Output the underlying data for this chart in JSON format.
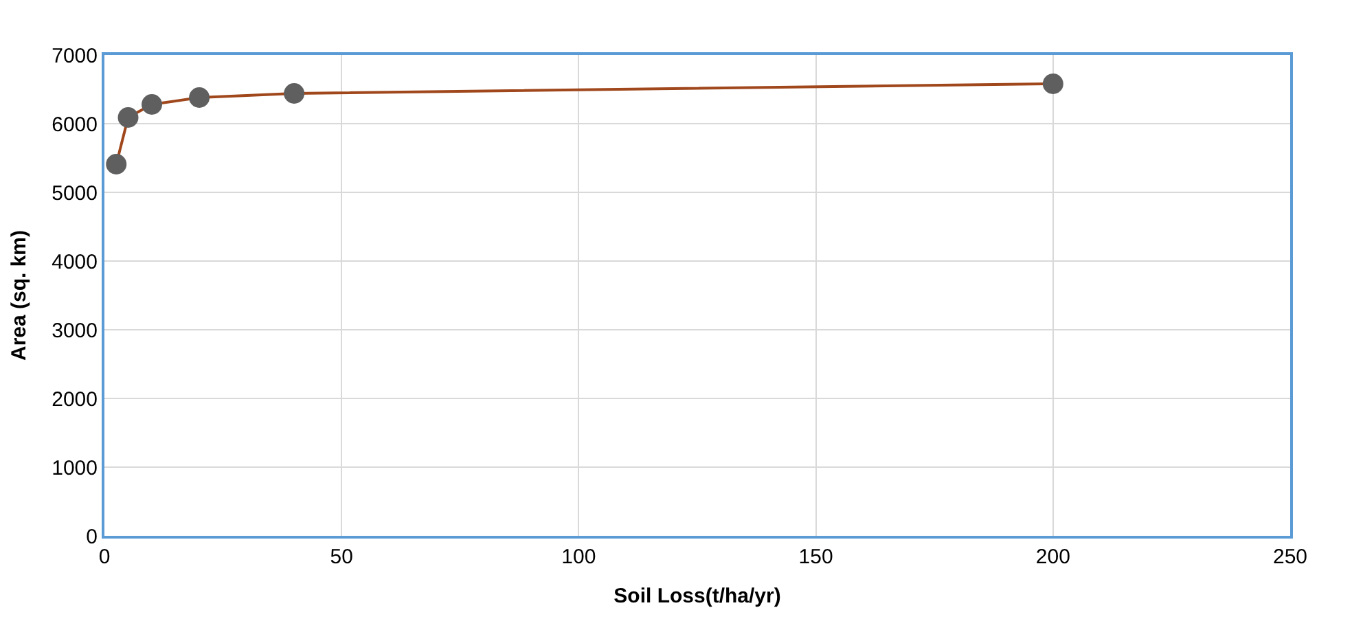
{
  "chart_data": {
    "type": "line",
    "xlabel": "Soil Loss(t/ha/yr)",
    "ylabel": "Area (sq. km)",
    "x": [
      2.5,
      5,
      10,
      20,
      40,
      200
    ],
    "series": [
      {
        "color": "#a0471c",
        "colors": [
          "#5f5f5f",
          "#5f5f5f",
          "#5f5f5f",
          "#5f5f5f",
          "#5f5f5f",
          "#5f5f5f"
        ],
        "values": [
          5410,
          6090,
          6280,
          6380,
          6440,
          6580
        ]
      }
    ],
    "marker": "circle",
    "line_style": "solid",
    "xlim": [
      0,
      250
    ],
    "xticks": [
      0,
      50,
      100,
      150,
      200,
      250
    ],
    "ylim": [
      0,
      7000
    ],
    "yticks": [
      0,
      1000,
      2000,
      3000,
      4000,
      5000,
      6000,
      7000
    ],
    "grid": true
  }
}
